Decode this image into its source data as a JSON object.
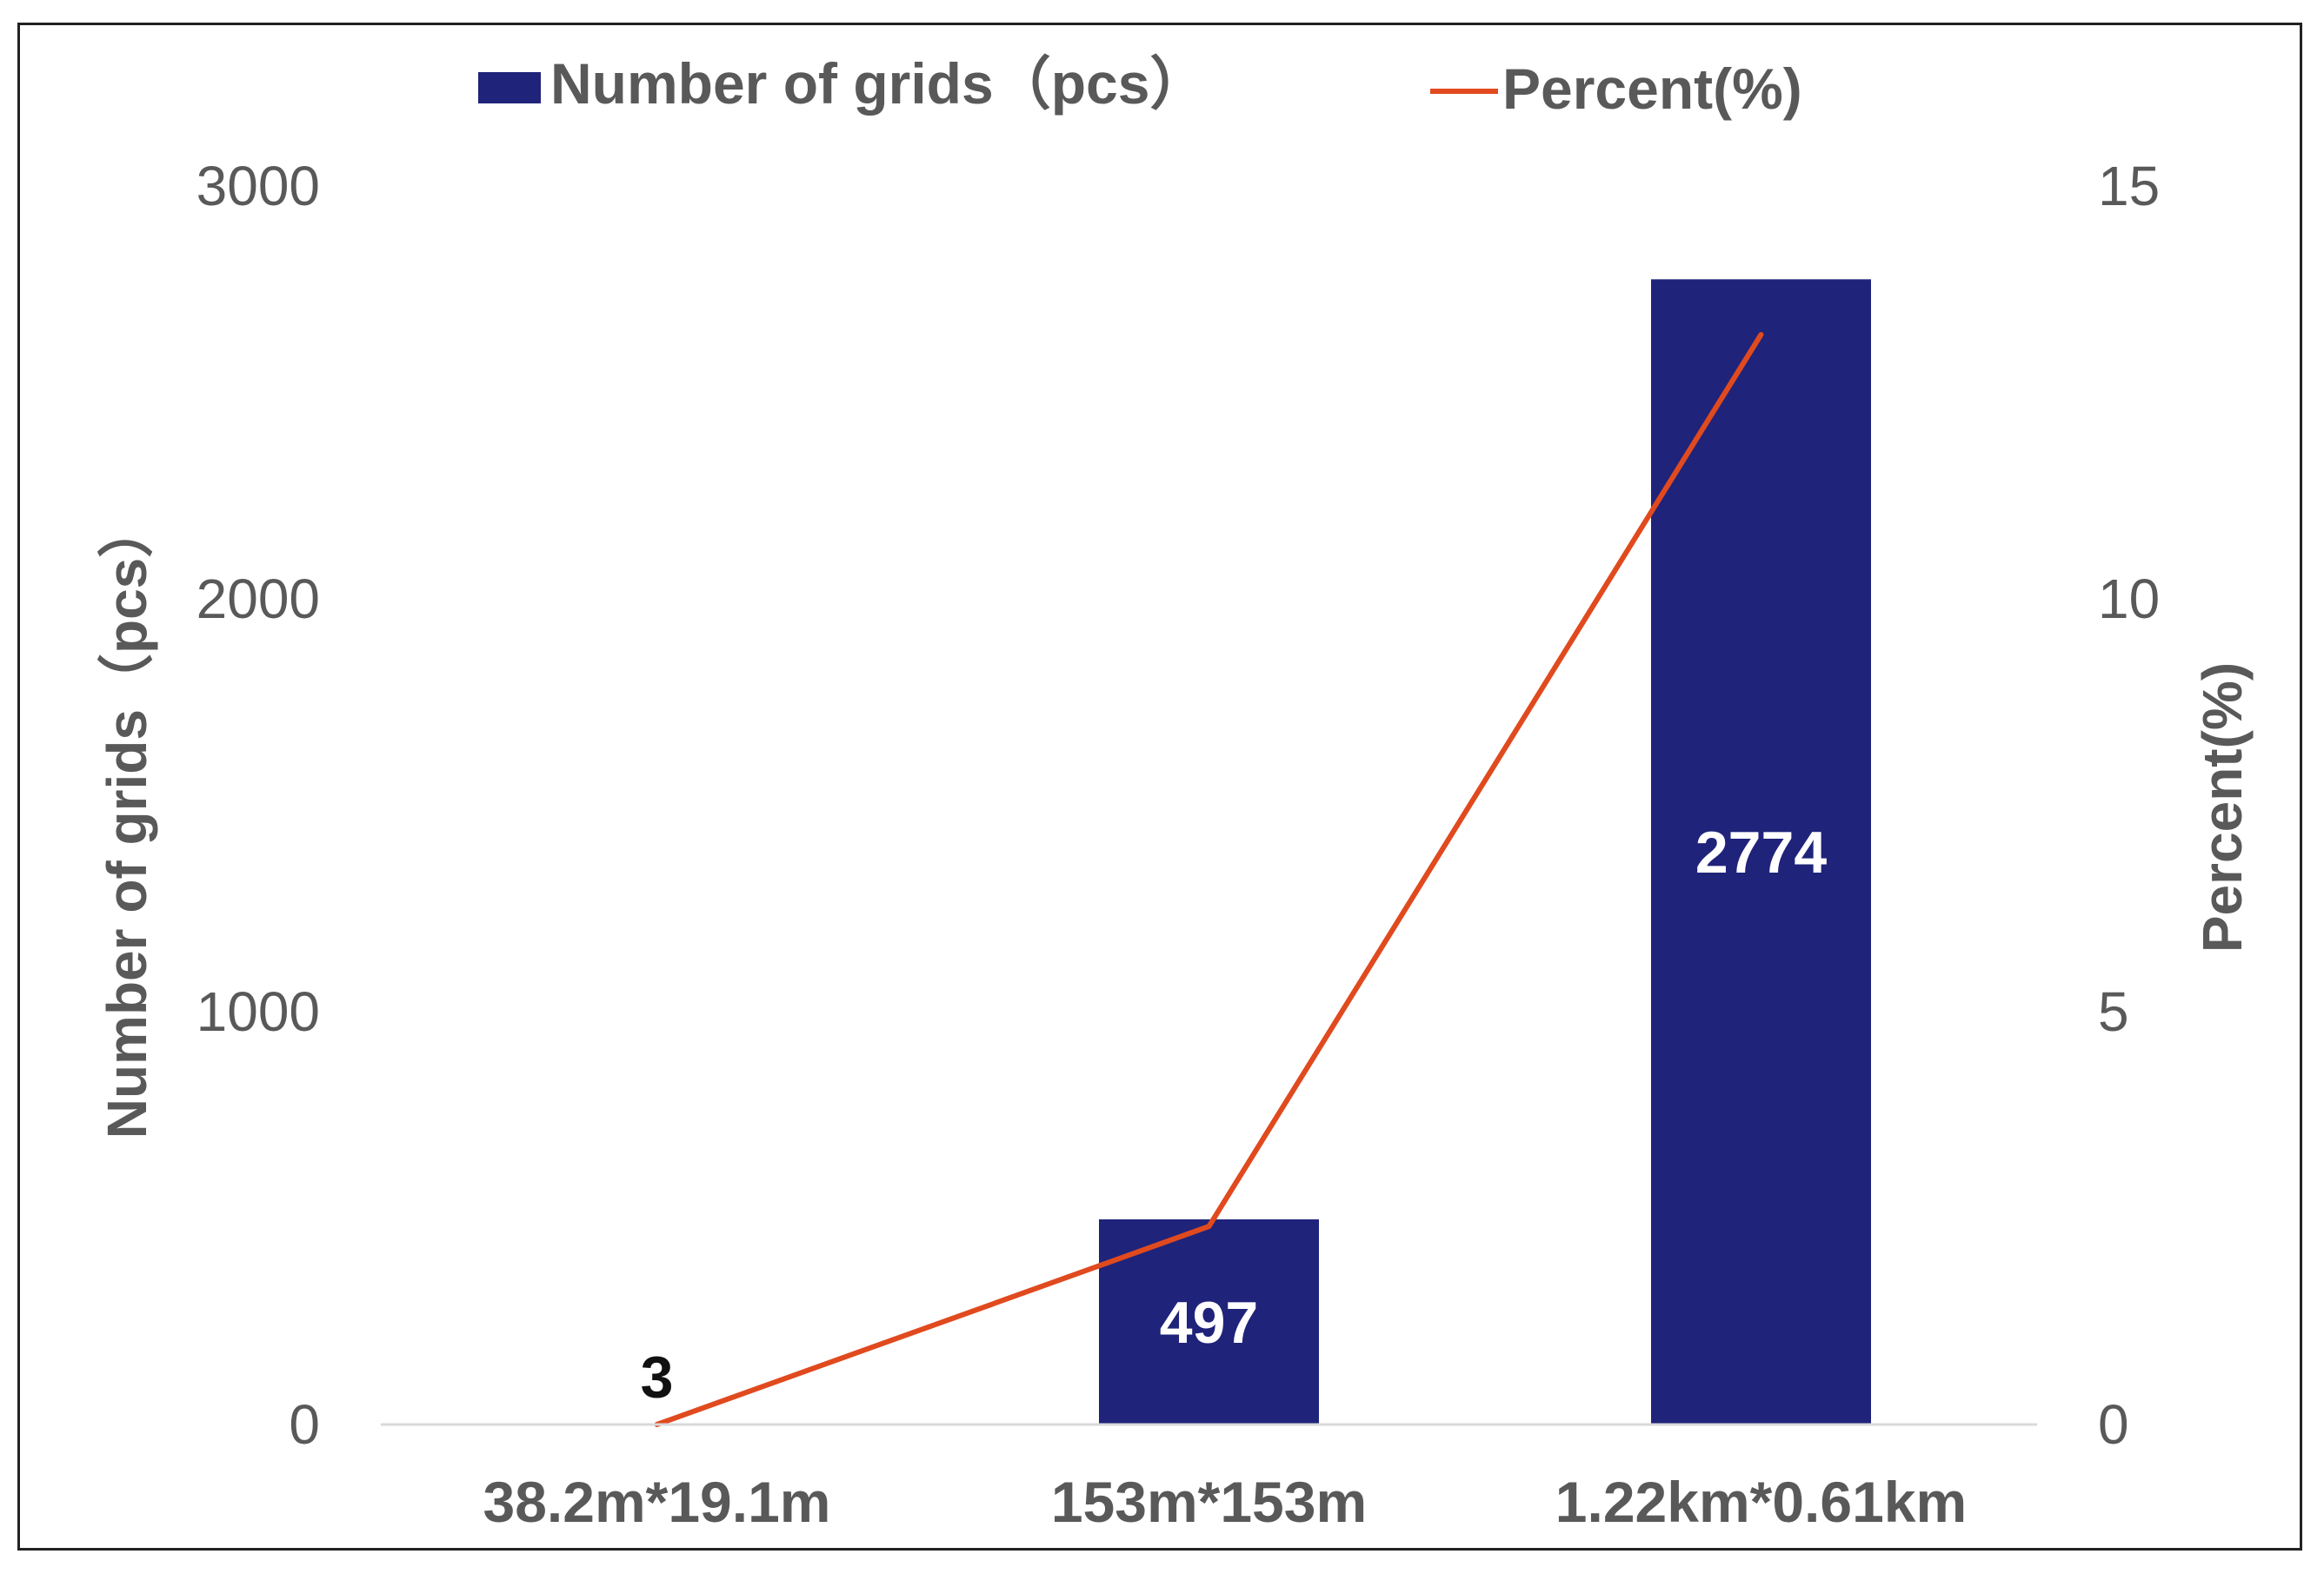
{
  "chart_data": {
    "type": "bar",
    "categories": [
      "38.2m*19.1m",
      "153m*153m",
      "1.22km*0.61km"
    ],
    "series": [
      {
        "name": "Number of grids（pcs）",
        "type": "bar",
        "axis": "left",
        "values": [
          3,
          497,
          2774
        ],
        "data_labels": [
          "3",
          "497",
          "2774"
        ],
        "color": "#1f237a"
      },
      {
        "name": "Percent(%)",
        "type": "line",
        "axis": "right",
        "values": [
          0,
          2.4,
          13.2
        ],
        "color": "#e04a1e"
      }
    ],
    "ylabel": "Number of grids（pcs）",
    "y2label": "Percent(%)",
    "xlabel": "",
    "ylim": [
      0,
      3000
    ],
    "y2lim": [
      0,
      15
    ],
    "yticks": [
      "0",
      "1000",
      "2000",
      "3000"
    ],
    "y2ticks": [
      "0",
      "5",
      "10",
      "15"
    ],
    "grid": false,
    "legend_position": "top"
  },
  "colors": {
    "bar": "#1f237a",
    "line": "#e04a1e",
    "text": "#595959",
    "axis": "#d9d9d9"
  }
}
